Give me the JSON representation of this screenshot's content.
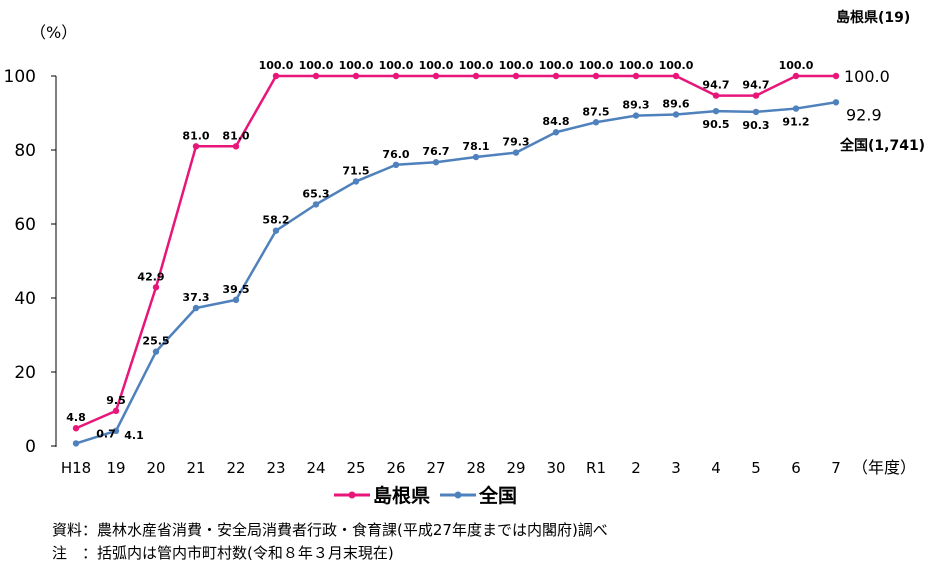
{
  "chart_data": {
    "type": "line",
    "categories": [
      "H18",
      "19",
      "20",
      "21",
      "22",
      "23",
      "24",
      "25",
      "26",
      "27",
      "28",
      "29",
      "30",
      "R1",
      "2",
      "3",
      "4",
      "5",
      "6",
      "7"
    ],
    "series": [
      {
        "name": "島根県",
        "color": "#e8157a",
        "values": [
          4.8,
          9.5,
          42.9,
          81.0,
          81.0,
          100.0,
          100.0,
          100.0,
          100.0,
          100.0,
          100.0,
          100.0,
          100.0,
          100.0,
          100.0,
          100.0,
          94.7,
          94.7,
          100.0,
          100.0
        ],
        "labels": [
          "4.8",
          "9.5",
          "42.9",
          "81.0",
          "81.0",
          "100.0",
          "100.0",
          "100.0",
          "100.0",
          "100.0",
          "100.0",
          "100.0",
          "100.0",
          "100.0",
          "100.0",
          "100.0",
          "94.7",
          "94.7",
          "100.0",
          "100.0"
        ]
      },
      {
        "name": "全国",
        "color": "#4f81bd",
        "values": [
          0.7,
          4.1,
          25.5,
          37.3,
          39.5,
          58.2,
          65.3,
          71.5,
          76.0,
          76.7,
          78.1,
          79.3,
          84.8,
          87.5,
          89.3,
          89.6,
          90.5,
          90.3,
          91.2,
          92.9
        ],
        "labels": [
          "0.7",
          "4.1",
          "25.5",
          "37.3",
          "39.5",
          "58.2",
          "65.3",
          "71.5",
          "76.0",
          "76.7",
          "78.1",
          "79.3",
          "84.8",
          "87.5",
          "89.3",
          "89.6",
          "90.5",
          "90.3",
          "91.2",
          "92.9"
        ]
      }
    ],
    "ylim": [
      0,
      100
    ],
    "yticks": [
      "0",
      "20",
      "40",
      "60",
      "80",
      "100"
    ],
    "ylabel": "（%）",
    "xlabel": "（年度）",
    "end_labels": {
      "shimane_name": "島根県(19)",
      "national_name": "全国(1,741)"
    },
    "legend_position": "bottom",
    "grid": false
  },
  "notes": {
    "source": "資料：農林水産省消費・安全局消費者行政・食育課(平成27年度までは内閣府)調べ",
    "note": "注　：括弧内は管内市町村数(令和８年３月末現在)"
  }
}
